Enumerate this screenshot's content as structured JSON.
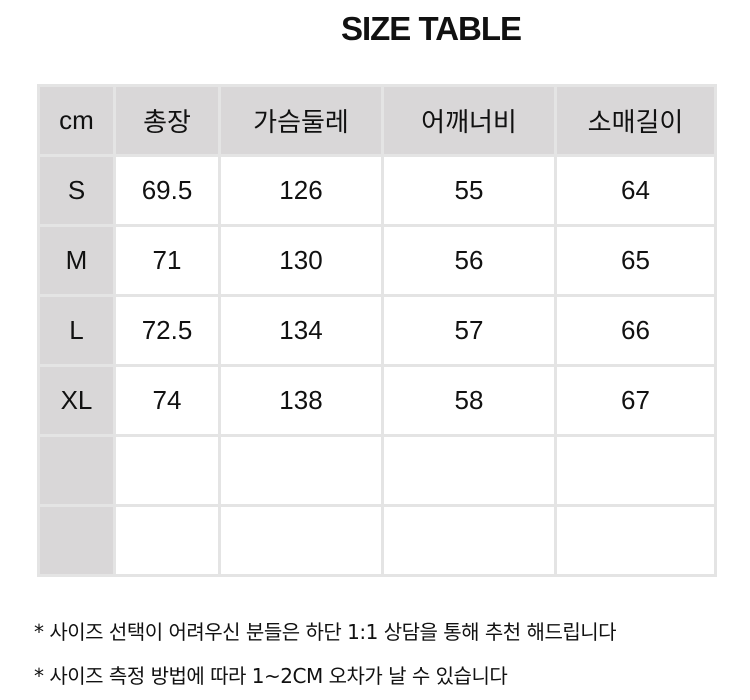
{
  "title": "SIZE TABLE",
  "table": {
    "headers": [
      "cm",
      "총장",
      "가슴둘레",
      "어깨너비",
      "소매길이"
    ],
    "rows": [
      [
        "S",
        "69.5",
        "126",
        "55",
        "64"
      ],
      [
        "M",
        "71",
        "130",
        "56",
        "65"
      ],
      [
        "L",
        "72.5",
        "134",
        "57",
        "66"
      ],
      [
        "XL",
        "74",
        "138",
        "58",
        "67"
      ],
      [
        "",
        "",
        "",
        "",
        ""
      ],
      [
        "",
        "",
        "",
        "",
        ""
      ]
    ]
  },
  "notes": [
    "* 사이즈 선택이 어려우신 분들은 하단 1:1 상담을 통해 추천 해드립니다",
    "* 사이즈 측정 방법에 따라 1~2CM 오차가 날 수 있습니다"
  ],
  "colors": {
    "header_bg": "#d9d7d8",
    "border": "#e4e4e4"
  }
}
